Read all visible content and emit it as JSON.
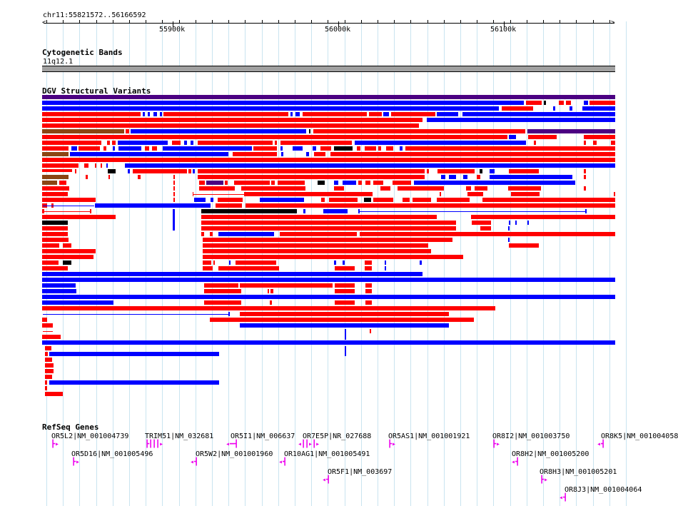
{
  "ruler": {
    "location": "chr11:55821572..56166592",
    "ticks": [
      "55900k",
      "56000k",
      "56100k"
    ]
  },
  "tracks": {
    "cytoband": {
      "title": "Cytogenetic Bands",
      "band": "11q12.1"
    },
    "dgv": {
      "title": "DGV Structural Variants"
    },
    "refseq": {
      "title": "RefSeq Genes"
    }
  },
  "colors": {
    "gain": "#ff0000",
    "loss": "#0000ff",
    "gain_loss": "#4b0082",
    "inversion": "#8b4513",
    "complex": "#000000",
    "gene": "#ee00ee",
    "grid": "#c9e4f0",
    "band": "#a0a0a0"
  },
  "genes": [
    {
      "label": "OR5L2|NM_001004739",
      "strand": "+"
    },
    {
      "label": "OR5D16|NM_001005496",
      "strand": "+"
    },
    {
      "label": "TRIM51|NM_032681",
      "strand": "+"
    },
    {
      "label": "OR5W2|NM_001001960",
      "strand": "-"
    },
    {
      "label": "OR5I1|NM_006637",
      "strand": "-"
    },
    {
      "label": "OR10AG1|NM_001005491",
      "strand": "-"
    },
    {
      "label": "OR7E5P|NR_027688",
      "strand": "+"
    },
    {
      "label": "OR5F1|NM_003697",
      "strand": "-"
    },
    {
      "label": "OR5AS1|NM_001001921",
      "strand": "+"
    },
    {
      "label": "OR8I2|NM_001003750",
      "strand": "+"
    },
    {
      "label": "OR8H2|NM_001005200",
      "strand": "-"
    },
    {
      "label": "OR8H3|NM_001005201",
      "strand": "+"
    },
    {
      "label": "OR8J3|NM_001004064",
      "strand": "-"
    },
    {
      "label": "OR8K5|NM_001004058",
      "strand": "-"
    }
  ]
}
